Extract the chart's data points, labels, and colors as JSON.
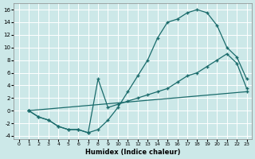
{
  "xlabel": "Humidex (Indice chaleur)",
  "background_color": "#cce8e8",
  "grid_color": "#ffffff",
  "line_color": "#1a6b6b",
  "xlim": [
    -0.5,
    23.5
  ],
  "ylim": [
    -4.5,
    17.0
  ],
  "xticks": [
    0,
    1,
    2,
    3,
    4,
    5,
    6,
    7,
    8,
    9,
    10,
    11,
    12,
    13,
    14,
    15,
    16,
    17,
    18,
    19,
    20,
    21,
    22,
    23
  ],
  "yticks": [
    -4,
    -2,
    0,
    2,
    4,
    6,
    8,
    10,
    12,
    14,
    16
  ],
  "curve1_x": [
    1,
    2,
    3,
    4,
    5,
    6,
    7,
    8,
    9,
    10,
    11,
    12,
    13,
    14,
    15,
    16,
    17,
    18,
    19,
    20,
    21,
    22,
    23
  ],
  "curve1_y": [
    0,
    -1,
    -1.5,
    -2.5,
    -3.0,
    -3.0,
    -3.5,
    -3.0,
    -1.5,
    0.5,
    3.0,
    5.5,
    8.0,
    11.5,
    14.0,
    14.5,
    15.5,
    16.0,
    15.5,
    13.5,
    10.0,
    8.5,
    5.0
  ],
  "curve2_x": [
    1,
    2,
    3,
    4,
    5,
    6,
    7,
    8,
    9,
    10,
    11,
    12,
    13,
    14,
    15,
    16,
    17,
    18,
    19,
    20,
    21,
    22,
    23
  ],
  "curve2_y": [
    0,
    -1,
    -1.5,
    -2.5,
    -3.0,
    -3.0,
    -3.5,
    5.0,
    0.5,
    1.0,
    1.5,
    2.0,
    2.5,
    3.0,
    3.5,
    4.5,
    5.5,
    6.0,
    7.0,
    8.0,
    9.0,
    7.5,
    3.5
  ],
  "curve3_x": [
    1,
    23
  ],
  "curve3_y": [
    0,
    3.0
  ]
}
